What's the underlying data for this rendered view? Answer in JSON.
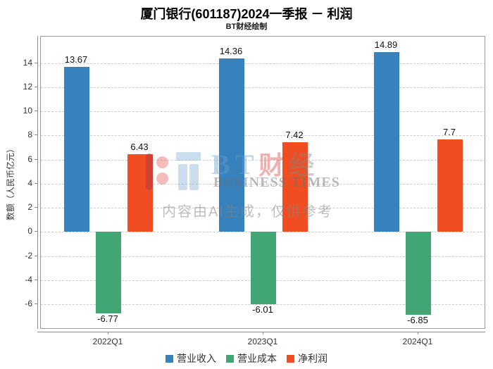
{
  "header": {
    "title": "厦门银行(601187)2024一季报 － 利润",
    "subtitle": "BT财经绘制"
  },
  "chart_data": {
    "type": "bar",
    "title": "厦门银行(601187)2024一季报 － 利润",
    "subtitle": "BT财经绘制",
    "ylabel": "数额（人民币亿元）",
    "categories": [
      "2022Q1",
      "2023Q1",
      "2024Q1"
    ],
    "series": [
      {
        "name": "营业收入",
        "color": "#3781bd",
        "values": [
          13.67,
          14.36,
          14.89
        ]
      },
      {
        "name": "营业成本",
        "color": "#42a574",
        "values": [
          -6.77,
          -6.01,
          -6.85
        ]
      },
      {
        "name": "净利润",
        "color": "#f04e22",
        "values": [
          6.43,
          7.42,
          7.7
        ]
      }
    ],
    "yticks": [
      -6,
      -4,
      -2,
      0,
      2,
      4,
      6,
      8,
      10,
      12,
      14
    ],
    "ylim": [
      -8.1,
      16.2
    ],
    "grid": true,
    "gridline_style": "dashed",
    "legend_position": "bottom",
    "value_labels_shown": true
  },
  "watermark": {
    "letter_b": "B",
    "letter_t": "T",
    "cjk_cai": "财",
    "cjk_jing": "经",
    "business_times": "BUSINESS TIMES",
    "disclaimer": "内容由AI生成，仅供参考"
  },
  "colors": {
    "revenue_blue": "#3781bd",
    "cost_green": "#42a574",
    "profit_orange": "#f04e22",
    "grid_gray": "#cccccc",
    "axis_gray": "#8c8c8c"
  }
}
